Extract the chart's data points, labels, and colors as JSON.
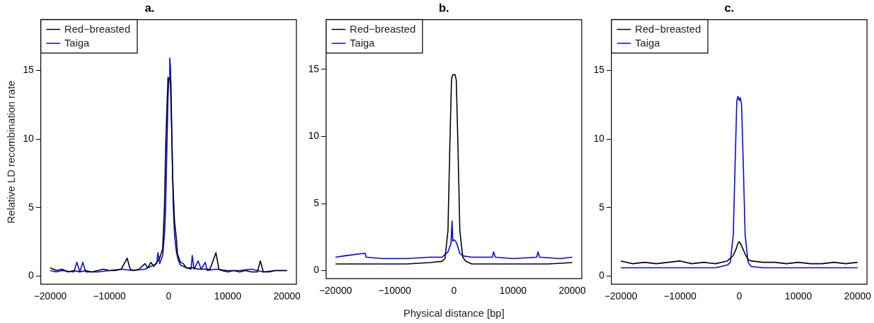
{
  "chart_data": [
    {
      "type": "line",
      "title": "a.",
      "ylabel": "Relative LD recombination rate",
      "legend": "top left",
      "marker": "none",
      "line_style": "solid",
      "grid": false,
      "xlim": [
        -21600,
        21600
      ],
      "ylim": [
        -0.6,
        18.7
      ],
      "xticks": [
        -20000,
        -10000,
        0,
        10000,
        20000
      ],
      "yticks": [
        0,
        5,
        10,
        15
      ],
      "series": [
        {
          "name": "Red−breasted",
          "color": "#000000",
          "x": [
            -20000,
            -19000,
            -18000,
            -17000,
            -16000,
            -15000,
            -14000,
            -13000,
            -12000,
            -11000,
            -10000,
            -9000,
            -8000,
            -7000,
            -6500,
            -6000,
            -5000,
            -4000,
            -3500,
            -3000,
            -2500,
            -2000,
            -1500,
            -1000,
            -700,
            -500,
            -300,
            -100,
            100,
            300,
            500,
            700,
            1000,
            1300,
            1500,
            2000,
            2500,
            3000,
            4000,
            5000,
            6000,
            7000,
            8000,
            8500,
            9000,
            10000,
            11000,
            12000,
            13000,
            14000,
            15000,
            15500,
            16000,
            17000,
            18000,
            19000,
            20000
          ],
          "values": [
            0.6,
            0.4,
            0.5,
            0.3,
            0.4,
            0.3,
            0.4,
            0.3,
            0.4,
            0.5,
            0.4,
            0.4,
            0.5,
            1.3,
            0.5,
            0.4,
            0.5,
            0.9,
            0.6,
            1.0,
            0.7,
            1.0,
            1.3,
            2.0,
            5.0,
            9.3,
            12.0,
            14.5,
            14.4,
            14.2,
            11.0,
            7.0,
            4.0,
            2.8,
            1.6,
            1.0,
            0.9,
            0.6,
            0.6,
            0.5,
            0.5,
            0.5,
            1.7,
            0.5,
            0.4,
            0.3,
            0.4,
            0.3,
            0.4,
            0.3,
            0.3,
            1.1,
            0.3,
            0.3,
            0.4,
            0.4,
            0.4
          ]
        },
        {
          "name": "Taiga",
          "color": "#0000ff",
          "x": [
            -20000,
            -19000,
            -18000,
            -16000,
            -15500,
            -15000,
            -14500,
            -14000,
            -12000,
            -10000,
            -8000,
            -6000,
            -4000,
            -3000,
            -2000,
            -1800,
            -1500,
            -1000,
            -700,
            -500,
            -300,
            -100,
            0,
            100,
            200,
            300,
            400,
            600,
            800,
            1000,
            1300,
            1600,
            2000,
            3000,
            3800,
            4000,
            4300,
            5000,
            5500,
            6200,
            6500,
            8000,
            10000,
            12000,
            14000,
            16000,
            18000,
            20000
          ],
          "values": [
            0.4,
            0.3,
            0.4,
            0.3,
            1.0,
            0.3,
            1.0,
            0.3,
            0.3,
            0.4,
            0.5,
            0.4,
            0.5,
            0.7,
            0.9,
            1.7,
            0.9,
            1.5,
            3.0,
            5.0,
            9.0,
            13.0,
            14.0,
            14.4,
            15.9,
            15.3,
            14.0,
            9.0,
            5.0,
            3.0,
            1.8,
            1.2,
            0.8,
            0.6,
            0.5,
            1.5,
            0.5,
            1.1,
            0.5,
            1.0,
            0.4,
            0.5,
            0.4,
            0.4,
            0.5,
            0.3,
            0.4,
            0.4
          ]
        }
      ]
    },
    {
      "type": "line",
      "title": "b.",
      "xlabel": "Physical distance [bp]",
      "legend": "top left",
      "marker": "none",
      "line_style": "solid",
      "grid": false,
      "xlim": [
        -21600,
        21600
      ],
      "ylim": [
        -0.6,
        18.7
      ],
      "xticks": [
        -20000,
        -10000,
        0,
        10000,
        20000
      ],
      "yticks": [
        0,
        5,
        10,
        15
      ],
      "series": [
        {
          "name": "Red−breasted",
          "color": "#000000",
          "x": [
            -20000,
            -16000,
            -12000,
            -8000,
            -4000,
            -2000,
            -1500,
            -1000,
            -700,
            -400,
            -200,
            200,
            400,
            700,
            1000,
            1500,
            2000,
            3000,
            4000,
            8000,
            12000,
            16000,
            20000
          ],
          "values": [
            0.5,
            0.5,
            0.5,
            0.5,
            0.6,
            0.7,
            0.9,
            3,
            9,
            14.3,
            14.6,
            14.6,
            14.2,
            9,
            3,
            1.0,
            0.7,
            0.5,
            0.5,
            0.5,
            0.5,
            0.5,
            0.6
          ]
        },
        {
          "name": "Taiga",
          "color": "#0000ff",
          "x": [
            -20000,
            -18500,
            -15000,
            -14800,
            -12000,
            -8000,
            -4000,
            -2000,
            -1000,
            -500,
            -300,
            -200,
            0,
            300,
            500,
            1000,
            1500,
            3000,
            6500,
            6700,
            7000,
            10000,
            14000,
            14200,
            14500,
            18000,
            20000
          ],
          "values": [
            1.0,
            1.1,
            1.3,
            1.0,
            0.9,
            0.9,
            1.0,
            1.0,
            1.4,
            2.0,
            3.7,
            2.2,
            2.3,
            2.2,
            2.0,
            1.3,
            1.1,
            1.0,
            1.0,
            1.4,
            1.0,
            0.9,
            1.0,
            1.4,
            1.0,
            0.9,
            1.0
          ]
        }
      ]
    },
    {
      "type": "line",
      "title": "c.",
      "legend": "top left",
      "marker": "none",
      "line_style": "solid",
      "grid": false,
      "xlim": [
        -21600,
        21600
      ],
      "ylim": [
        -0.6,
        18.7
      ],
      "xticks": [
        -20000,
        -10000,
        0,
        10000,
        20000
      ],
      "yticks": [
        0,
        5,
        10,
        15
      ],
      "series": [
        {
          "name": "Red−breasted",
          "color": "#000000",
          "x": [
            -20000,
            -18000,
            -16000,
            -14000,
            -12000,
            -10000,
            -8000,
            -6000,
            -4000,
            -2000,
            -1000,
            -500,
            -200,
            0,
            300,
            600,
            1000,
            1500,
            2000,
            4000,
            6000,
            8000,
            10000,
            12000,
            14000,
            16000,
            18000,
            20000
          ],
          "values": [
            1.1,
            0.9,
            1.0,
            0.9,
            1.0,
            1.1,
            0.9,
            1.0,
            0.9,
            1.1,
            1.5,
            2.0,
            2.4,
            2.5,
            2.3,
            2.0,
            1.6,
            1.2,
            1.1,
            1.0,
            1.0,
            0.9,
            1.0,
            0.9,
            0.9,
            1.0,
            0.9,
            1.0
          ]
        },
        {
          "name": "Taiga",
          "color": "#0000ff",
          "x": [
            -20000,
            -16000,
            -12000,
            -8000,
            -4000,
            -2000,
            -1500,
            -1000,
            -700,
            -400,
            -200,
            0,
            200,
            400,
            700,
            1000,
            1500,
            2000,
            4000,
            8000,
            12000,
            16000,
            20000
          ],
          "values": [
            0.6,
            0.6,
            0.6,
            0.6,
            0.6,
            0.8,
            1.0,
            3,
            8,
            12.8,
            13.1,
            12.8,
            13.0,
            12.5,
            8,
            3,
            1.0,
            0.7,
            0.6,
            0.6,
            0.6,
            0.6,
            0.6
          ]
        }
      ]
    }
  ]
}
